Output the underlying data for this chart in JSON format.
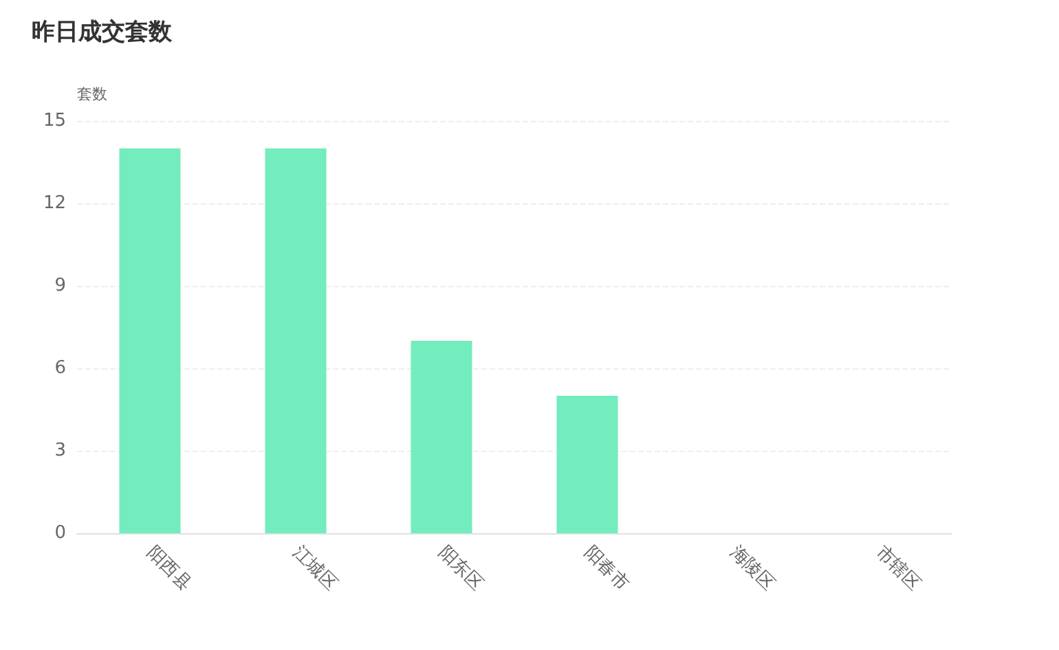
{
  "chart_data": {
    "type": "bar",
    "title": "昨日成交套数",
    "ylabel": "套数",
    "categories": [
      "阳西县",
      "江城区",
      "阳东区",
      "阳春市",
      "海陵区",
      "市辖区"
    ],
    "values": [
      14,
      14,
      7,
      5,
      0,
      0
    ],
    "color": "#73ecbe",
    "ylim": [
      0,
      15
    ],
    "yticks": [
      0,
      3,
      6,
      9,
      12,
      15
    ],
    "grid": "y"
  }
}
